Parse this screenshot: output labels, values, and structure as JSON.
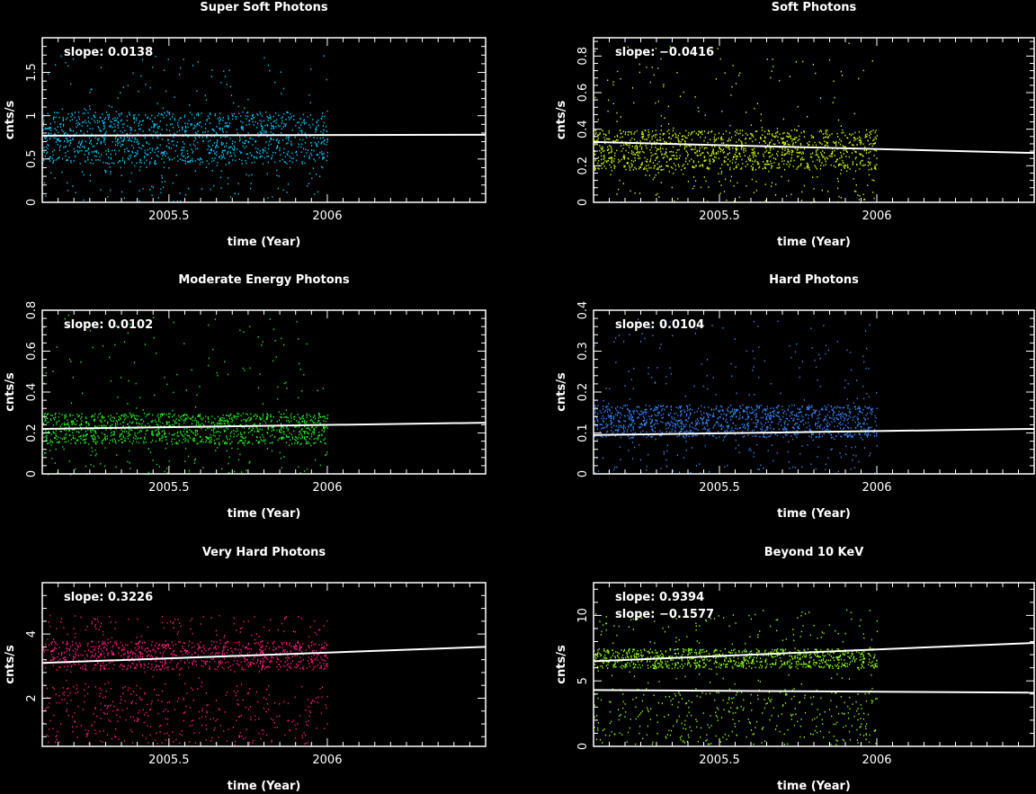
{
  "chart_data": [
    {
      "type": "scatter",
      "title": "Super Soft Photons",
      "xlabel": "time (Year)",
      "ylabel": "cnts/s",
      "xlim": [
        2005.1,
        2006.5
      ],
      "ylim": [
        0,
        1.9
      ],
      "xticks": [
        2005.5,
        2006
      ],
      "yticks": [
        0,
        0.5,
        1,
        1.5
      ],
      "annotations": [
        "slope: 0.0138"
      ],
      "colors": {
        "points": "#00ccff",
        "fit": "#ffffff"
      },
      "series": [
        {
          "values_summary": {
            "x_range": [
              2005.1,
              2006.0
            ],
            "band": [
              0.45,
              1.05
            ],
            "spikes_max": 1.7
          }
        },
        {
          "type": "line",
          "x": [
            2005.1,
            2006.5
          ],
          "y": [
            0.77,
            0.78
          ]
        }
      ]
    },
    {
      "type": "scatter",
      "title": "Soft Photons",
      "xlabel": "time (Year)",
      "ylabel": "cnts/s",
      "xlim": [
        2005.1,
        2006.5
      ],
      "ylim": [
        0,
        0.9
      ],
      "xticks": [
        2005.5,
        2006
      ],
      "yticks": [
        0,
        0.2,
        0.4,
        0.6,
        0.8
      ],
      "annotations": [
        "slope: −0.0416"
      ],
      "colors": {
        "points": "#ccff00",
        "fit": "#ffffff"
      },
      "series": [
        {
          "values_summary": {
            "x_range": [
              2005.1,
              2006.0
            ],
            "band": [
              0.18,
              0.4
            ],
            "spikes_max": 0.88
          }
        },
        {
          "type": "line",
          "x": [
            2005.1,
            2006.5
          ],
          "y": [
            0.33,
            0.27
          ]
        }
      ]
    },
    {
      "type": "scatter",
      "title": "Moderate Energy Photons",
      "xlabel": "time (Year)",
      "ylabel": "cnts/s",
      "xlim": [
        2005.1,
        2006.5
      ],
      "ylim": [
        0,
        0.8
      ],
      "xticks": [
        2005.5,
        2006
      ],
      "yticks": [
        0,
        0.2,
        0.4,
        0.6,
        0.8
      ],
      "annotations": [
        "slope: 0.0102"
      ],
      "colors": {
        "points": "#22ee22",
        "fit": "#ffffff"
      },
      "series": [
        {
          "values_summary": {
            "x_range": [
              2005.1,
              2006.0
            ],
            "band": [
              0.15,
              0.3
            ],
            "spikes_max": 0.78
          }
        },
        {
          "type": "line",
          "x": [
            2005.1,
            2006.5
          ],
          "y": [
            0.22,
            0.25
          ]
        }
      ]
    },
    {
      "type": "scatter",
      "title": "Hard Photons",
      "xlabel": "time (Year)",
      "ylabel": "cnts/s",
      "xlim": [
        2005.1,
        2006.5
      ],
      "ylim": [
        0,
        0.4
      ],
      "xticks": [
        2005.5,
        2006
      ],
      "yticks": [
        0,
        0.1,
        0.2,
        0.3,
        0.4
      ],
      "annotations": [
        "slope: 0.0104"
      ],
      "colors": {
        "points": "#3388ff",
        "fit": "#ffffff"
      },
      "series": [
        {
          "values_summary": {
            "x_range": [
              2005.1,
              2006.0
            ],
            "band": [
              0.09,
              0.17
            ],
            "spikes_max": 0.38
          }
        },
        {
          "type": "line",
          "x": [
            2005.1,
            2006.5
          ],
          "y": [
            0.095,
            0.11
          ]
        }
      ]
    },
    {
      "type": "scatter",
      "title": "Very Hard  Photons",
      "xlabel": "time (Year)",
      "ylabel": "cnts/s",
      "xlim": [
        2005.1,
        2006.5
      ],
      "ylim": [
        0.5,
        5.6
      ],
      "xticks": [
        2005.5,
        2006
      ],
      "yticks": [
        2,
        4
      ],
      "annotations": [
        "slope: 0.3226"
      ],
      "colors": {
        "points": "#ff1a80",
        "fit": "#ffffff"
      },
      "series": [
        {
          "values_summary": {
            "x_range": [
              2005.1,
              2006.0
            ],
            "band": [
              2.9,
              3.8
            ],
            "low_band": [
              0.6,
              2.4
            ],
            "spikes_max": 4.6
          }
        },
        {
          "type": "line",
          "x": [
            2005.1,
            2006.5
          ],
          "y": [
            3.1,
            3.6
          ]
        }
      ]
    },
    {
      "type": "scatter",
      "title": "Beyond 10 KeV",
      "xlabel": "time (Year)",
      "ylabel": "cnts/s",
      "xlim": [
        2005.1,
        2006.5
      ],
      "ylim": [
        0,
        12.5
      ],
      "xticks": [
        2005.5,
        2006
      ],
      "yticks": [
        0,
        5,
        10
      ],
      "annotations": [
        "slope: 0.9394",
        "slope: −0.1577"
      ],
      "colors": {
        "points": "#88ff11",
        "fit": "#ffffff"
      },
      "series": [
        {
          "values_summary": {
            "x_range": [
              2005.1,
              2006.0
            ],
            "band": [
              6.0,
              7.5
            ],
            "low_band": [
              0.2,
              4.5
            ],
            "spikes_max": 10.5
          }
        },
        {
          "type": "line",
          "x": [
            2005.1,
            2006.5
          ],
          "y": [
            6.5,
            7.9
          ]
        },
        {
          "type": "line",
          "x": [
            2005.1,
            2006.5
          ],
          "y": [
            4.3,
            4.1
          ]
        }
      ]
    }
  ]
}
